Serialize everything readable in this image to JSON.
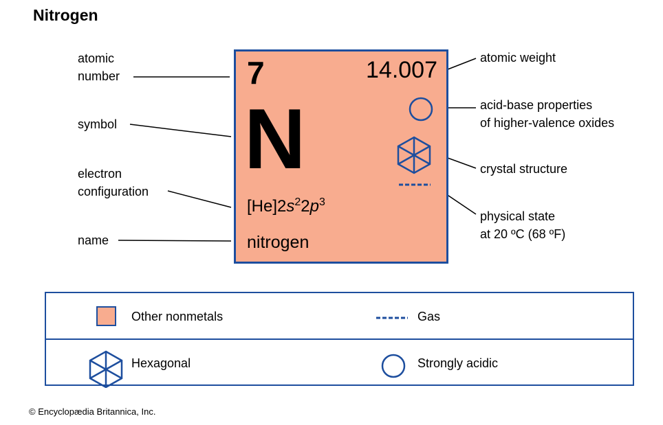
{
  "title": "Nitrogen",
  "tile": {
    "atomic_number": "7",
    "atomic_weight": "14.007",
    "symbol": "N",
    "config_prefix": "[He]2",
    "config_orbital1": "s",
    "config_exp1": "2",
    "config_mid": "2",
    "config_orbital2": "p",
    "config_exp2": "3",
    "name": "nitrogen",
    "color": "#f8ac8f"
  },
  "labels": {
    "atomic_number_line1": "atomic",
    "atomic_number_line2": "number",
    "symbol": "symbol",
    "electron_config_line1": "electron",
    "electron_config_line2": "configuration",
    "name": "name",
    "atomic_weight": "atomic weight",
    "acid_base_line1": "acid-base properties",
    "acid_base_line2": "of higher-valence oxides",
    "crystal_structure": "crystal structure",
    "physical_state_line1": "physical state",
    "physical_state_line2": "at 20 ºC (68 ºF)"
  },
  "legend": {
    "category": "Other nonmetals",
    "state": "Gas",
    "crystal": "Hexagonal",
    "acidity": "Strongly acidic",
    "icons": [
      "category-swatch",
      "gas-dashes-icon",
      "hexagon-icon",
      "circle-icon"
    ]
  },
  "colors": {
    "accent": "#1d4e9e",
    "tile": "#f8ac8f"
  },
  "credit": "© Encyclopædia Britannica, Inc."
}
